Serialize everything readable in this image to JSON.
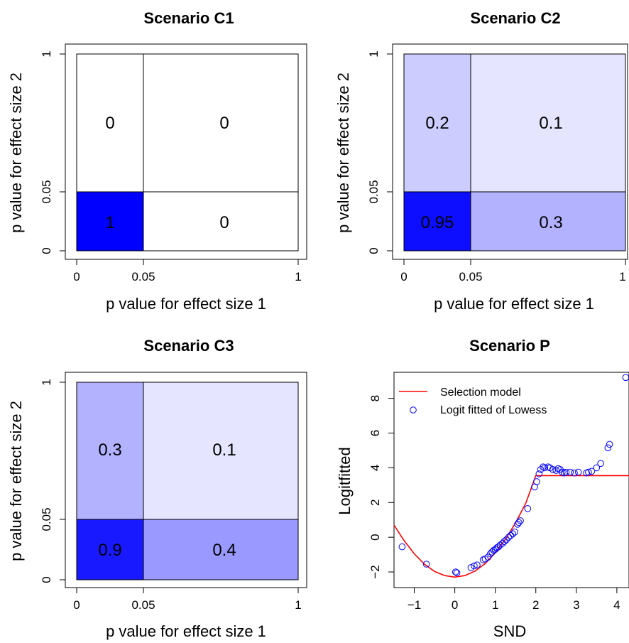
{
  "colors": {
    "base_blue": "#0000ff",
    "line": "#ff0000",
    "points": "#0000ff"
  },
  "chart_data": [
    {
      "type": "heatmap",
      "title": "Scenario C1",
      "xlabel": "p value for effect size 1",
      "ylabel": "p value for effect size 2",
      "x_ticks": [
        "0",
        "0.05",
        "1"
      ],
      "y_ticks": [
        "0",
        "0.05",
        "1"
      ],
      "cells": [
        {
          "label": "1",
          "value": 1,
          "x": "0-0.05",
          "y": "0-0.05"
        },
        {
          "label": "0",
          "value": 0,
          "x": "0.05-1",
          "y": "0-0.05"
        },
        {
          "label": "0",
          "value": 0,
          "x": "0-0.05",
          "y": "0.05-1"
        },
        {
          "label": "0",
          "value": 0,
          "x": "0.05-1",
          "y": "0.05-1"
        }
      ]
    },
    {
      "type": "heatmap",
      "title": "Scenario C2",
      "xlabel": "p value for effect size 1",
      "ylabel": "p value for effect size 2",
      "x_ticks": [
        "0",
        "0.05",
        "1"
      ],
      "y_ticks": [
        "0",
        "0.05",
        "1"
      ],
      "cells": [
        {
          "label": "0.95",
          "value": 0.95,
          "x": "0-0.05",
          "y": "0-0.05"
        },
        {
          "label": "0.3",
          "value": 0.3,
          "x": "0.05-1",
          "y": "0-0.05"
        },
        {
          "label": "0.2",
          "value": 0.2,
          "x": "0-0.05",
          "y": "0.05-1"
        },
        {
          "label": "0.1",
          "value": 0.1,
          "x": "0.05-1",
          "y": "0.05-1"
        }
      ]
    },
    {
      "type": "heatmap",
      "title": "Scenario C3",
      "xlabel": "p value for effect size 1",
      "ylabel": "p value for effect size 2",
      "x_ticks": [
        "0",
        "0.05",
        "1"
      ],
      "y_ticks": [
        "0",
        "0.05",
        "1"
      ],
      "cells": [
        {
          "label": "0.9",
          "value": 0.9,
          "x": "0-0.05",
          "y": "0-0.05"
        },
        {
          "label": "0.4",
          "value": 0.4,
          "x": "0.05-1",
          "y": "0-0.05"
        },
        {
          "label": "0.3",
          "value": 0.3,
          "x": "0-0.05",
          "y": "0.05-1"
        },
        {
          "label": "0.1",
          "value": 0.1,
          "x": "0.05-1",
          "y": "0.05-1"
        }
      ]
    },
    {
      "type": "scatter",
      "title": "Scenario P",
      "xlabel": "SND",
      "ylabel": "Logitfitted",
      "xlim": [
        -1.5,
        4.3
      ],
      "ylim": [
        -2.9,
        9.5
      ],
      "x_ticks": [
        -1,
        0,
        1,
        2,
        3,
        4
      ],
      "y_ticks": [
        -2,
        0,
        2,
        4,
        6,
        8
      ],
      "legend_position": "top-left",
      "series": [
        {
          "name": "Selection model",
          "kind": "line",
          "points": [
            [
              -1.5,
              0.7
            ],
            [
              -1.25,
              -0.2
            ],
            [
              -1.0,
              -0.95
            ],
            [
              -0.75,
              -1.55
            ],
            [
              -0.5,
              -1.97
            ],
            [
              -0.25,
              -2.21
            ],
            [
              0.0,
              -2.3
            ],
            [
              0.25,
              -2.21
            ],
            [
              0.5,
              -1.95
            ],
            [
              0.75,
              -1.52
            ],
            [
              1.0,
              -0.9
            ],
            [
              1.25,
              -0.12
            ],
            [
              1.5,
              0.83
            ],
            [
              1.75,
              1.95
            ],
            [
              2.0,
              3.55
            ],
            [
              2.5,
              3.55
            ],
            [
              3.0,
              3.55
            ],
            [
              3.5,
              3.55
            ],
            [
              4.0,
              3.55
            ],
            [
              4.3,
              3.55
            ]
          ]
        },
        {
          "name": "Logit fitted of Lowess",
          "kind": "points",
          "points": [
            [
              -1.3,
              -0.55
            ],
            [
              -0.7,
              -1.55
            ],
            [
              0.02,
              -2.0
            ],
            [
              0.05,
              -2.05
            ],
            [
              0.4,
              -1.75
            ],
            [
              0.48,
              -1.65
            ],
            [
              0.55,
              -1.6
            ],
            [
              0.7,
              -1.3
            ],
            [
              0.75,
              -1.25
            ],
            [
              0.82,
              -1.15
            ],
            [
              0.88,
              -0.95
            ],
            [
              0.92,
              -0.85
            ],
            [
              0.96,
              -0.75
            ],
            [
              1.0,
              -0.7
            ],
            [
              1.04,
              -0.6
            ],
            [
              1.08,
              -0.55
            ],
            [
              1.12,
              -0.45
            ],
            [
              1.18,
              -0.35
            ],
            [
              1.22,
              -0.25
            ],
            [
              1.27,
              -0.15
            ],
            [
              1.33,
              0.0
            ],
            [
              1.38,
              0.1
            ],
            [
              1.43,
              0.2
            ],
            [
              1.48,
              0.3
            ],
            [
              1.55,
              0.75
            ],
            [
              1.58,
              0.85
            ],
            [
              1.62,
              0.95
            ],
            [
              1.8,
              1.65
            ],
            [
              1.97,
              2.9
            ],
            [
              2.02,
              3.2
            ],
            [
              2.08,
              3.65
            ],
            [
              2.12,
              3.9
            ],
            [
              2.18,
              4.05
            ],
            [
              2.22,
              4.0
            ],
            [
              2.3,
              4.05
            ],
            [
              2.35,
              4.0
            ],
            [
              2.42,
              3.9
            ],
            [
              2.5,
              3.85
            ],
            [
              2.55,
              3.95
            ],
            [
              2.6,
              3.9
            ],
            [
              2.65,
              3.75
            ],
            [
              2.7,
              3.7
            ],
            [
              2.75,
              3.75
            ],
            [
              2.85,
              3.75
            ],
            [
              2.95,
              3.7
            ],
            [
              3.05,
              3.75
            ],
            [
              3.25,
              3.7
            ],
            [
              3.3,
              3.75
            ],
            [
              3.38,
              3.8
            ],
            [
              3.5,
              4.0
            ],
            [
              3.6,
              4.25
            ],
            [
              3.78,
              5.15
            ],
            [
              3.82,
              5.35
            ],
            [
              4.22,
              9.2
            ]
          ]
        }
      ]
    }
  ]
}
